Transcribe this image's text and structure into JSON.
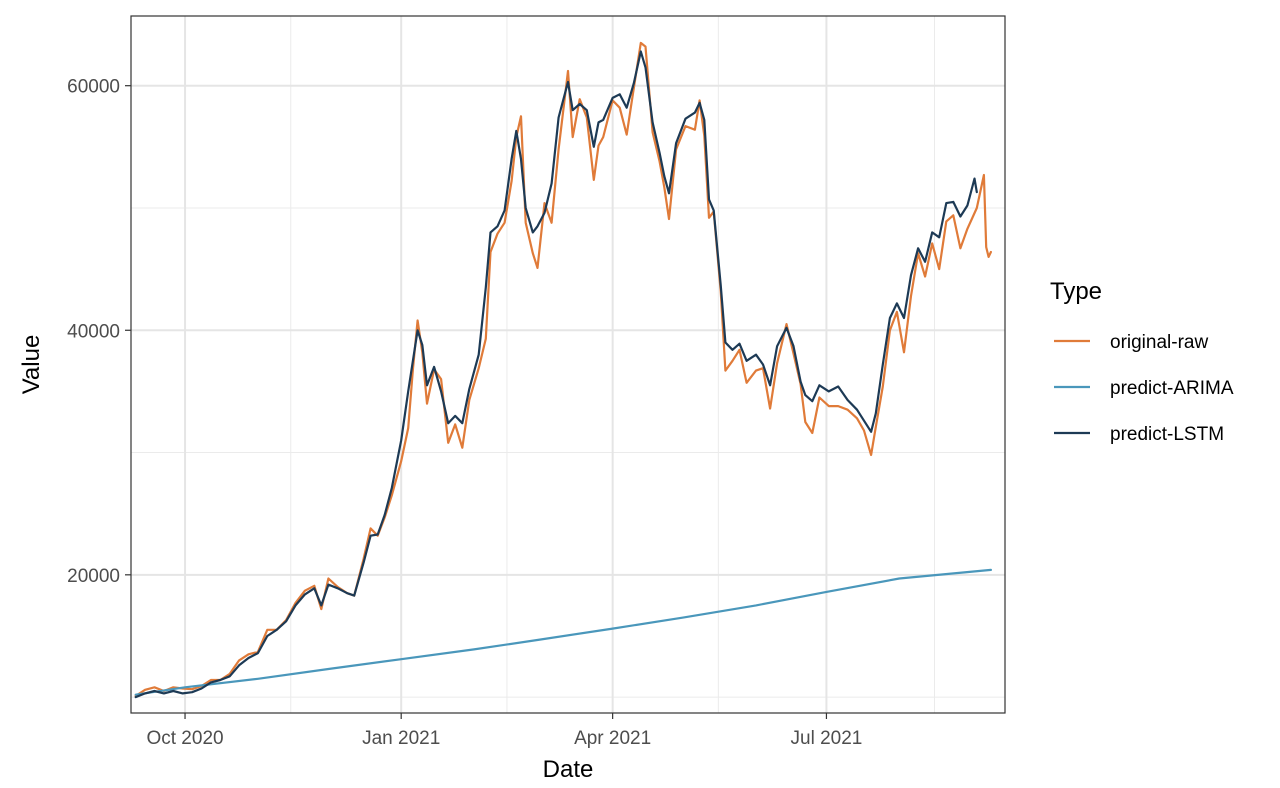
{
  "chart_data": {
    "type": "line",
    "title": "",
    "xlabel": "Date",
    "ylabel": "Value",
    "xlim": [
      "2020-09-08",
      "2021-09-15"
    ],
    "ylim": [
      8700,
      65700
    ],
    "grid": true,
    "legend_position": "right",
    "legend_title": "Type",
    "x_ticks": [
      {
        "date": "2020-10-01",
        "label": "Oct 2020"
      },
      {
        "date": "2021-01-01",
        "label": "Jan 2021"
      },
      {
        "date": "2021-04-01",
        "label": "Apr 2021"
      },
      {
        "date": "2021-07-01",
        "label": "Jul 2021"
      }
    ],
    "x_minor_ticks": [
      "2020-11-15",
      "2021-02-15",
      "2021-05-16",
      "2021-08-16"
    ],
    "y_ticks": [
      20000,
      40000,
      60000
    ],
    "y_minor_ticks": [
      10000,
      30000,
      50000
    ],
    "series": [
      {
        "name": "original-raw",
        "color": "#e07b39",
        "points": [
          [
            "2020-09-10",
            10100
          ],
          [
            "2020-09-14",
            10600
          ],
          [
            "2020-09-18",
            10800
          ],
          [
            "2020-09-22",
            10500
          ],
          [
            "2020-09-26",
            10800
          ],
          [
            "2020-09-30",
            10700
          ],
          [
            "2020-10-04",
            10650
          ],
          [
            "2020-10-08",
            10900
          ],
          [
            "2020-10-12",
            11400
          ],
          [
            "2020-10-16",
            11400
          ],
          [
            "2020-10-20",
            11900
          ],
          [
            "2020-10-24",
            13000
          ],
          [
            "2020-10-28",
            13500
          ],
          [
            "2020-11-01",
            13700
          ],
          [
            "2020-11-05",
            15500
          ],
          [
            "2020-11-09",
            15500
          ],
          [
            "2020-11-13",
            16300
          ],
          [
            "2020-11-17",
            17700
          ],
          [
            "2020-11-21",
            18700
          ],
          [
            "2020-11-25",
            19100
          ],
          [
            "2020-11-28",
            17200
          ],
          [
            "2020-12-01",
            19700
          ],
          [
            "2020-12-05",
            19000
          ],
          [
            "2020-12-09",
            18500
          ],
          [
            "2020-12-12",
            18300
          ],
          [
            "2020-12-16",
            21300
          ],
          [
            "2020-12-19",
            23800
          ],
          [
            "2020-12-22",
            23200
          ],
          [
            "2020-12-25",
            24700
          ],
          [
            "2020-12-28",
            26500
          ],
          [
            "2021-01-01",
            29300
          ],
          [
            "2021-01-04",
            32000
          ],
          [
            "2021-01-06",
            36800
          ],
          [
            "2021-01-08",
            40800
          ],
          [
            "2021-01-10",
            38200
          ],
          [
            "2021-01-12",
            34000
          ],
          [
            "2021-01-15",
            36800
          ],
          [
            "2021-01-18",
            36000
          ],
          [
            "2021-01-21",
            30800
          ],
          [
            "2021-01-24",
            32300
          ],
          [
            "2021-01-27",
            30400
          ],
          [
            "2021-01-30",
            34300
          ],
          [
            "2021-02-03",
            36900
          ],
          [
            "2021-02-06",
            39300
          ],
          [
            "2021-02-08",
            46400
          ],
          [
            "2021-02-11",
            47900
          ],
          [
            "2021-02-14",
            48800
          ],
          [
            "2021-02-17",
            52200
          ],
          [
            "2021-02-19",
            55800
          ],
          [
            "2021-02-21",
            57500
          ],
          [
            "2021-02-23",
            48800
          ],
          [
            "2021-02-26",
            46300
          ],
          [
            "2021-02-28",
            45100
          ],
          [
            "2021-03-03",
            50400
          ],
          [
            "2021-03-06",
            48800
          ],
          [
            "2021-03-09",
            54800
          ],
          [
            "2021-03-13",
            61200
          ],
          [
            "2021-03-15",
            55800
          ],
          [
            "2021-03-18",
            58900
          ],
          [
            "2021-03-21",
            57400
          ],
          [
            "2021-03-24",
            52300
          ],
          [
            "2021-03-26",
            55100
          ],
          [
            "2021-03-28",
            55800
          ],
          [
            "2021-04-01",
            58800
          ],
          [
            "2021-04-04",
            58200
          ],
          [
            "2021-04-07",
            56000
          ],
          [
            "2021-04-10",
            59800
          ],
          [
            "2021-04-13",
            63500
          ],
          [
            "2021-04-15",
            63200
          ],
          [
            "2021-04-18",
            56200
          ],
          [
            "2021-04-21",
            53800
          ],
          [
            "2021-04-23",
            51700
          ],
          [
            "2021-04-25",
            49100
          ],
          [
            "2021-04-28",
            54800
          ],
          [
            "2021-05-02",
            56700
          ],
          [
            "2021-05-06",
            56400
          ],
          [
            "2021-05-08",
            58800
          ],
          [
            "2021-05-10",
            55900
          ],
          [
            "2021-05-12",
            49200
          ],
          [
            "2021-05-14",
            49700
          ],
          [
            "2021-05-17",
            43200
          ],
          [
            "2021-05-19",
            36700
          ],
          [
            "2021-05-22",
            37500
          ],
          [
            "2021-05-25",
            38400
          ],
          [
            "2021-05-28",
            35700
          ],
          [
            "2021-06-01",
            36700
          ],
          [
            "2021-06-04",
            36900
          ],
          [
            "2021-06-07",
            33600
          ],
          [
            "2021-06-10",
            37300
          ],
          [
            "2021-06-14",
            40500
          ],
          [
            "2021-06-17",
            38100
          ],
          [
            "2021-06-20",
            35600
          ],
          [
            "2021-06-22",
            32500
          ],
          [
            "2021-06-25",
            31600
          ],
          [
            "2021-06-28",
            34500
          ],
          [
            "2021-07-02",
            33800
          ],
          [
            "2021-07-06",
            33800
          ],
          [
            "2021-07-10",
            33500
          ],
          [
            "2021-07-14",
            32800
          ],
          [
            "2021-07-17",
            31800
          ],
          [
            "2021-07-20",
            29800
          ],
          [
            "2021-07-22",
            32100
          ],
          [
            "2021-07-25",
            35400
          ],
          [
            "2021-07-28",
            40000
          ],
          [
            "2021-07-31",
            41500
          ],
          [
            "2021-08-03",
            38200
          ],
          [
            "2021-08-06",
            42800
          ],
          [
            "2021-08-09",
            46300
          ],
          [
            "2021-08-12",
            44400
          ],
          [
            "2021-08-15",
            47100
          ],
          [
            "2021-08-18",
            45000
          ],
          [
            "2021-08-21",
            48900
          ],
          [
            "2021-08-24",
            49400
          ],
          [
            "2021-08-27",
            46700
          ],
          [
            "2021-08-30",
            48300
          ],
          [
            "2021-09-03",
            50000
          ],
          [
            "2021-09-06",
            52700
          ],
          [
            "2021-09-07",
            46800
          ],
          [
            "2021-09-08",
            46000
          ],
          [
            "2021-09-09",
            46400
          ]
        ]
      },
      {
        "name": "predict-ARIMA",
        "color": "#4a97bb",
        "points": [
          [
            "2020-09-10",
            10200
          ],
          [
            "2020-10-01",
            10800
          ],
          [
            "2020-11-01",
            11500
          ],
          [
            "2020-12-01",
            12300
          ],
          [
            "2021-01-01",
            13100
          ],
          [
            "2021-02-01",
            13900
          ],
          [
            "2021-03-01",
            14700
          ],
          [
            "2021-04-01",
            15600
          ],
          [
            "2021-05-01",
            16500
          ],
          [
            "2021-06-01",
            17500
          ],
          [
            "2021-07-01",
            18600
          ],
          [
            "2021-08-01",
            19700
          ],
          [
            "2021-09-09",
            20400
          ]
        ]
      },
      {
        "name": "predict-LSTM",
        "color": "#1d3a55",
        "points": [
          [
            "2020-09-10",
            10000
          ],
          [
            "2020-09-14",
            10300
          ],
          [
            "2020-09-18",
            10500
          ],
          [
            "2020-09-22",
            10300
          ],
          [
            "2020-09-26",
            10500
          ],
          [
            "2020-09-30",
            10300
          ],
          [
            "2020-10-04",
            10400
          ],
          [
            "2020-10-08",
            10700
          ],
          [
            "2020-10-12",
            11200
          ],
          [
            "2020-10-16",
            11400
          ],
          [
            "2020-10-20",
            11700
          ],
          [
            "2020-10-24",
            12600
          ],
          [
            "2020-10-28",
            13200
          ],
          [
            "2020-11-01",
            13600
          ],
          [
            "2020-11-05",
            15000
          ],
          [
            "2020-11-09",
            15500
          ],
          [
            "2020-11-13",
            16200
          ],
          [
            "2020-11-17",
            17500
          ],
          [
            "2020-11-21",
            18400
          ],
          [
            "2020-11-25",
            18900
          ],
          [
            "2020-11-28",
            17500
          ],
          [
            "2020-12-01",
            19200
          ],
          [
            "2020-12-05",
            18900
          ],
          [
            "2020-12-09",
            18500
          ],
          [
            "2020-12-12",
            18300
          ],
          [
            "2020-12-16",
            21000
          ],
          [
            "2020-12-19",
            23200
          ],
          [
            "2020-12-22",
            23300
          ],
          [
            "2020-12-25",
            24900
          ],
          [
            "2020-12-28",
            27100
          ],
          [
            "2021-01-01",
            31000
          ],
          [
            "2021-01-04",
            35000
          ],
          [
            "2021-01-06",
            37500
          ],
          [
            "2021-01-08",
            40000
          ],
          [
            "2021-01-10",
            38800
          ],
          [
            "2021-01-12",
            35500
          ],
          [
            "2021-01-15",
            37000
          ],
          [
            "2021-01-18",
            35000
          ],
          [
            "2021-01-21",
            32400
          ],
          [
            "2021-01-24",
            33000
          ],
          [
            "2021-01-27",
            32400
          ],
          [
            "2021-01-30",
            35200
          ],
          [
            "2021-02-03",
            38000
          ],
          [
            "2021-02-06",
            43500
          ],
          [
            "2021-02-08",
            48000
          ],
          [
            "2021-02-11",
            48500
          ],
          [
            "2021-02-14",
            49800
          ],
          [
            "2021-02-17",
            54000
          ],
          [
            "2021-02-19",
            56300
          ],
          [
            "2021-02-21",
            54000
          ],
          [
            "2021-02-23",
            50000
          ],
          [
            "2021-02-26",
            48000
          ],
          [
            "2021-02-28",
            48500
          ],
          [
            "2021-03-03",
            49600
          ],
          [
            "2021-03-06",
            52000
          ],
          [
            "2021-03-09",
            57400
          ],
          [
            "2021-03-13",
            60300
          ],
          [
            "2021-03-15",
            58000
          ],
          [
            "2021-03-18",
            58500
          ],
          [
            "2021-03-21",
            58000
          ],
          [
            "2021-03-24",
            55000
          ],
          [
            "2021-03-26",
            57000
          ],
          [
            "2021-03-28",
            57200
          ],
          [
            "2021-04-01",
            59000
          ],
          [
            "2021-04-04",
            59300
          ],
          [
            "2021-04-07",
            58200
          ],
          [
            "2021-04-10",
            60200
          ],
          [
            "2021-04-13",
            62800
          ],
          [
            "2021-04-15",
            61500
          ],
          [
            "2021-04-18",
            57000
          ],
          [
            "2021-04-21",
            54500
          ],
          [
            "2021-04-23",
            52600
          ],
          [
            "2021-04-25",
            51200
          ],
          [
            "2021-04-28",
            55300
          ],
          [
            "2021-05-02",
            57300
          ],
          [
            "2021-05-06",
            57800
          ],
          [
            "2021-05-08",
            58600
          ],
          [
            "2021-05-10",
            57200
          ],
          [
            "2021-05-12",
            50700
          ],
          [
            "2021-05-14",
            49800
          ],
          [
            "2021-05-17",
            43700
          ],
          [
            "2021-05-19",
            39000
          ],
          [
            "2021-05-22",
            38400
          ],
          [
            "2021-05-25",
            38900
          ],
          [
            "2021-05-28",
            37500
          ],
          [
            "2021-06-01",
            38000
          ],
          [
            "2021-06-04",
            37200
          ],
          [
            "2021-06-07",
            35500
          ],
          [
            "2021-06-10",
            38700
          ],
          [
            "2021-06-14",
            40200
          ],
          [
            "2021-06-17",
            38700
          ],
          [
            "2021-06-20",
            35800
          ],
          [
            "2021-06-22",
            34700
          ],
          [
            "2021-06-25",
            34200
          ],
          [
            "2021-06-28",
            35500
          ],
          [
            "2021-07-02",
            35000
          ],
          [
            "2021-07-06",
            35400
          ],
          [
            "2021-07-10",
            34300
          ],
          [
            "2021-07-14",
            33500
          ],
          [
            "2021-07-17",
            32600
          ],
          [
            "2021-07-20",
            31700
          ],
          [
            "2021-07-22",
            33200
          ],
          [
            "2021-07-25",
            37200
          ],
          [
            "2021-07-28",
            41000
          ],
          [
            "2021-07-31",
            42200
          ],
          [
            "2021-08-03",
            41000
          ],
          [
            "2021-08-06",
            44500
          ],
          [
            "2021-08-09",
            46700
          ],
          [
            "2021-08-12",
            45600
          ],
          [
            "2021-08-15",
            48000
          ],
          [
            "2021-08-18",
            47600
          ],
          [
            "2021-08-21",
            50400
          ],
          [
            "2021-08-24",
            50500
          ],
          [
            "2021-08-27",
            49300
          ],
          [
            "2021-08-30",
            50200
          ],
          [
            "2021-09-02",
            52400
          ],
          [
            "2021-09-03",
            51300
          ]
        ]
      }
    ]
  }
}
